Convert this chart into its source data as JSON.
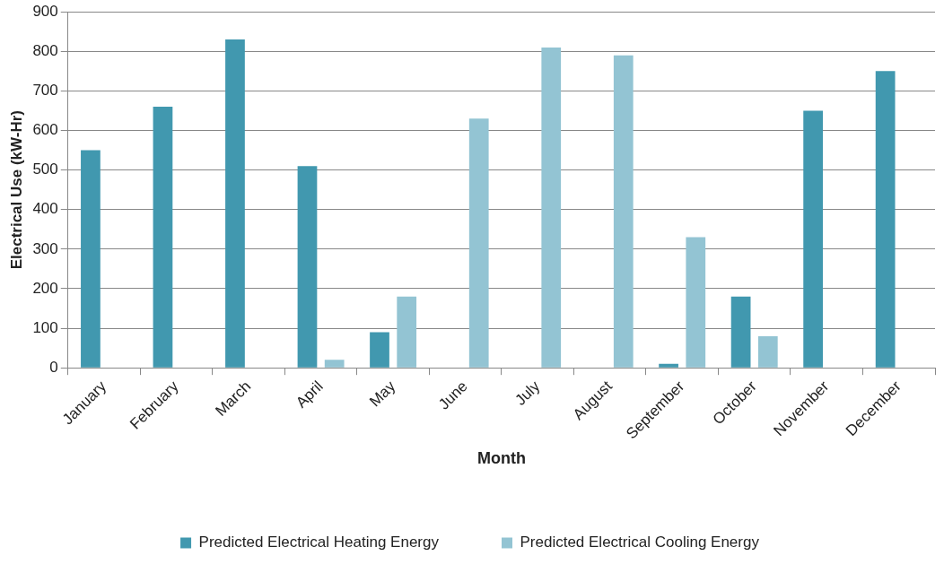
{
  "chart_data": {
    "type": "bar",
    "xlabel": "Month",
    "ylabel": "Electrical Use (kW-Hr)",
    "categories": [
      "January",
      "February",
      "March",
      "April",
      "May",
      "June",
      "July",
      "August",
      "September",
      "October",
      "November",
      "December"
    ],
    "series": [
      {
        "name": "Predicted Electrical Heating Energy",
        "color": "#4198af",
        "values": [
          550,
          660,
          830,
          510,
          90,
          0,
          0,
          0,
          10,
          180,
          650,
          750
        ]
      },
      {
        "name": "Predicted Electrical Cooling Energy",
        "color": "#93c4d3",
        "values": [
          0,
          0,
          0,
          20,
          180,
          630,
          810,
          790,
          330,
          80,
          0,
          0
        ]
      }
    ],
    "ylim": [
      0,
      900
    ],
    "yticks": [
      0,
      100,
      200,
      300,
      400,
      500,
      600,
      700,
      800,
      900
    ],
    "grid": "y",
    "legend": "bottom"
  }
}
